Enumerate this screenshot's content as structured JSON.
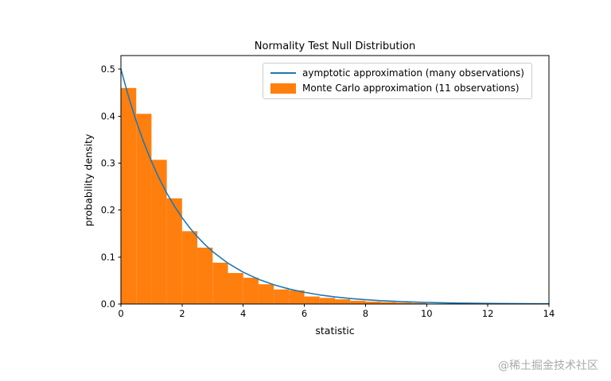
{
  "watermark": "@稀土掘金技术社区",
  "chart_data": {
    "type": "histogram+line",
    "title": "Normality Test Null Distribution",
    "xlabel": "statistic",
    "ylabel": "probability density",
    "xlim": [
      0,
      14
    ],
    "ylim": [
      0,
      0.529
    ],
    "xticks": [
      0,
      2,
      4,
      6,
      8,
      10,
      12,
      14
    ],
    "yticks": [
      0.0,
      0.1,
      0.2,
      0.3,
      0.4,
      0.5
    ],
    "grid": false,
    "legend_position": "upper right",
    "series": [
      {
        "name": "aymptotic approximation (many observations)",
        "type": "line",
        "color": "#1f77b4",
        "x": [
          0,
          0.25,
          0.5,
          0.75,
          1.0,
          1.25,
          1.5,
          1.75,
          2.0,
          2.25,
          2.5,
          2.75,
          3.0,
          3.5,
          4.0,
          4.5,
          5.0,
          5.5,
          6.0,
          6.5,
          7.0,
          7.5,
          8.0,
          8.5,
          9.0,
          9.5,
          10.0,
          10.5,
          11.0,
          11.5,
          12.0,
          12.5,
          13.0,
          13.5,
          14.0
        ],
        "y": [
          0.5,
          0.4412,
          0.3894,
          0.3436,
          0.3033,
          0.2676,
          0.2362,
          0.2084,
          0.1839,
          0.1623,
          0.1433,
          0.1264,
          0.1116,
          0.0869,
          0.0677,
          0.0527,
          0.041,
          0.032,
          0.0249,
          0.0194,
          0.0151,
          0.0118,
          0.0092,
          0.0071,
          0.0056,
          0.0043,
          0.0034,
          0.0026,
          0.002,
          0.0016,
          0.0012,
          0.001,
          0.0008,
          0.0006,
          0.0005
        ]
      },
      {
        "name": "Monte Carlo approximation (11 observations)",
        "type": "histogram",
        "color": "#ff7f0e",
        "bin_start": 0,
        "bin_width": 0.5,
        "heights": [
          0.46,
          0.405,
          0.307,
          0.225,
          0.155,
          0.12,
          0.088,
          0.066,
          0.056,
          0.042,
          0.031,
          0.029,
          0.016,
          0.013,
          0.01,
          0.007,
          0.005,
          0.004,
          0.003,
          0.002
        ]
      }
    ]
  }
}
